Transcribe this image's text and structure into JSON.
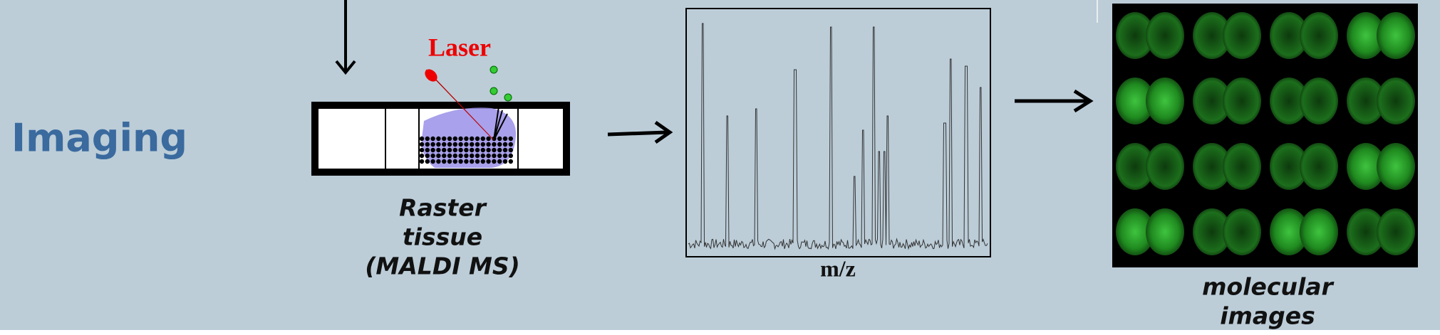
{
  "imaging_label": "Imaging",
  "laser_label": "Laser",
  "raster_caption": [
    "Raster",
    "tissue",
    "(MALDI MS)"
  ],
  "spectrum_axis_label": "m/z",
  "output_caption": [
    "molecular",
    "images"
  ]
}
